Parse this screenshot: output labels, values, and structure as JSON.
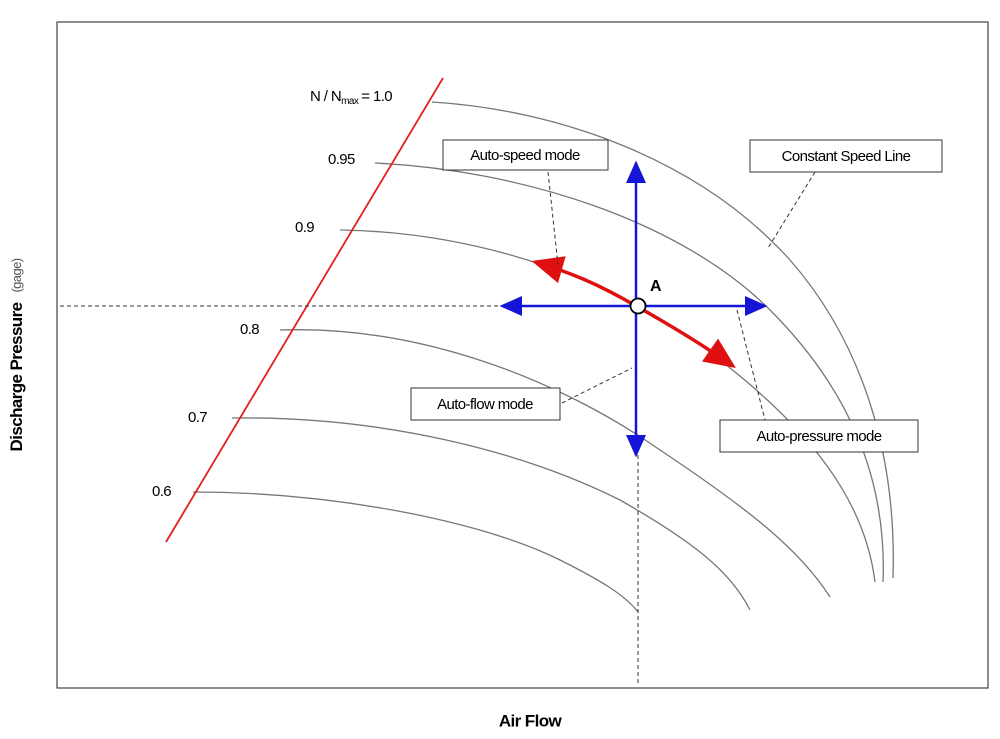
{
  "axes": {
    "x_label": "Air Flow",
    "y_label": "Discharge Pressure",
    "y_unit": "(gage)"
  },
  "top_speed_label": {
    "prefix": "N / N",
    "sub": "max",
    "suffix": "= 1.0"
  },
  "speed_labels": [
    "0.95",
    "0.9",
    "0.8",
    "0.7",
    "0.6"
  ],
  "operating_point": "A",
  "callouts": [
    "Auto-speed mode",
    "Constant Speed Line",
    "Auto-flow mode",
    "Auto-pressure mode"
  ]
}
